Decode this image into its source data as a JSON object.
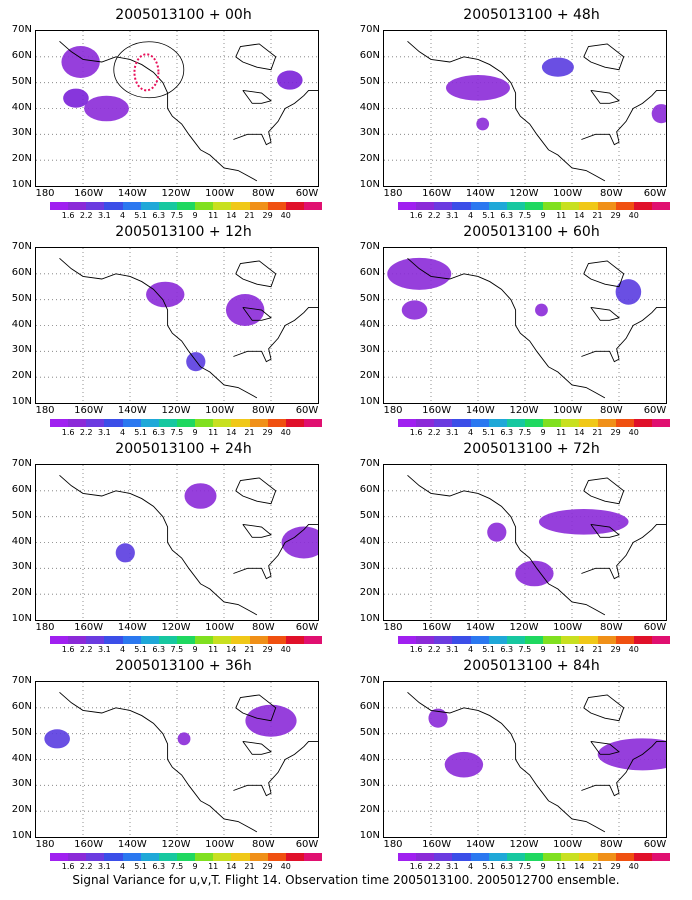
{
  "panels": [
    {
      "title": "2005013100 + 00h",
      "col": 0,
      "row": 0,
      "blobs": [
        [
          40,
          45,
          7,
          4,
          "#8b2ad8"
        ],
        [
          50,
          50,
          6,
          5,
          "#8b2ad8"
        ],
        [
          42,
          42,
          4,
          3,
          "#7a20d8"
        ],
        [
          55,
          52,
          4,
          3,
          "#7a20d8"
        ]
      ],
      "highlight": true
    },
    {
      "title": "2005013100 + 48h",
      "col": 1,
      "row": 0,
      "blobs": [
        [
          60,
          60,
          10,
          4,
          "#8b2ad8"
        ],
        [
          55,
          55,
          5,
          3,
          "#5a3ce0"
        ],
        [
          45,
          45,
          3,
          3,
          "#8b2ad8"
        ],
        [
          30,
          30,
          2,
          2,
          "#8b2ad8"
        ]
      ],
      "highlight": false
    },
    {
      "title": "2005013100 + 12h",
      "col": 0,
      "row": 1,
      "blobs": [
        [
          38,
          42,
          6,
          4,
          "#8b2ad8"
        ],
        [
          50,
          52,
          6,
          5,
          "#8b2ad8"
        ],
        [
          52,
          52,
          3,
          3,
          "#5a3ce0"
        ]
      ],
      "highlight": false
    },
    {
      "title": "2005013100 + 60h",
      "col": 1,
      "row": 1,
      "blobs": [
        [
          62,
          60,
          10,
          5,
          "#8b2ad8"
        ],
        [
          52,
          55,
          4,
          4,
          "#5a3ce0"
        ],
        [
          50,
          50,
          4,
          3,
          "#8b2ad8"
        ],
        [
          40,
          40,
          2,
          2,
          "#8b2ad8"
        ]
      ],
      "highlight": false
    },
    {
      "title": "2005013100 + 24h",
      "col": 0,
      "row": 2,
      "blobs": [
        [
          40,
          44,
          5,
          4,
          "#8b2ad8"
        ],
        [
          52,
          54,
          7,
          5,
          "#8b2ad8"
        ],
        [
          46,
          46,
          3,
          3,
          "#5a3ce0"
        ]
      ],
      "highlight": false
    },
    {
      "title": "2005013100 + 72h",
      "col": 1,
      "row": 2,
      "blobs": [
        [
          65,
          60,
          14,
          4,
          "#8b2ad8"
        ],
        [
          55,
          55,
          6,
          4,
          "#8b2ad8"
        ],
        [
          40,
          40,
          3,
          3,
          "#8b2ad8"
        ]
      ],
      "highlight": false
    },
    {
      "title": "2005013100 + 36h",
      "col": 0,
      "row": 3,
      "blobs": [
        [
          50,
          52,
          8,
          5,
          "#8b2ad8"
        ],
        [
          50,
          50,
          4,
          3,
          "#5a3ce0"
        ],
        [
          30,
          30,
          2,
          2,
          "#8b2ad8"
        ]
      ],
      "highlight": false
    },
    {
      "title": "2005013100 + 84h",
      "col": 1,
      "row": 3,
      "blobs": [
        [
          60,
          55,
          14,
          5,
          "#8b2ad8"
        ],
        [
          50,
          50,
          6,
          4,
          "#8b2ad8"
        ],
        [
          35,
          35,
          3,
          3,
          "#8b2ad8"
        ]
      ],
      "highlight": false
    }
  ],
  "lat_labels": [
    "70N",
    "60N",
    "50N",
    "40N",
    "30N",
    "20N",
    "10N"
  ],
  "lon_labels": [
    "180",
    "160W",
    "140W",
    "120W",
    "100W",
    "80W",
    "60W"
  ],
  "colorbar": {
    "colors": [
      "#a020f0",
      "#8b2ad8",
      "#6b3be0",
      "#3b4ee8",
      "#2b78f0",
      "#1fa8d8",
      "#17c8a0",
      "#1fd860",
      "#80e020",
      "#c8e020",
      "#f0c818",
      "#f09018",
      "#f05010",
      "#e0102a",
      "#e01070"
    ],
    "labels": [
      "1.6",
      "2.2",
      "3.1",
      "4",
      "5.1",
      "6.3",
      "7.5",
      "9",
      "11",
      "14",
      "21",
      "29",
      "40"
    ]
  },
  "footer": "Signal Variance for u,v,T. Flight 14. Observation time 2005013100. 2005012700 ensemble."
}
